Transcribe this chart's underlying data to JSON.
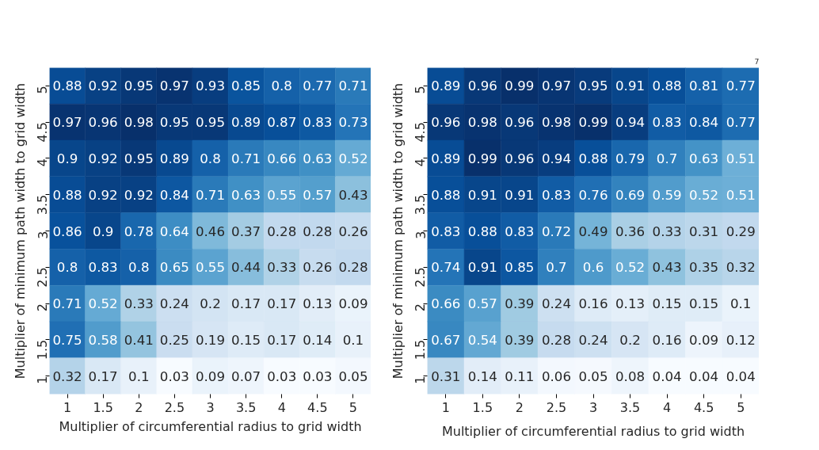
{
  "chart_data": [
    {
      "type": "heatmap",
      "xlabel": "Multiplier of circumferential radius to grid width",
      "ylabel": "Multiplier of minimum path width to grid width",
      "categories": [
        "1",
        "1.5",
        "2",
        "2.5",
        "3",
        "3.5",
        "4",
        "4.5",
        "5"
      ],
      "y_categories": [
        "5",
        "4.5",
        "4",
        "3.5",
        "3",
        "2.5",
        "2",
        "1.5",
        "1"
      ],
      "cells": [
        [
          0.88,
          0.92,
          0.95,
          0.97,
          0.93,
          0.85,
          0.8,
          0.77,
          0.71
        ],
        [
          0.97,
          0.96,
          0.98,
          0.95,
          0.95,
          0.89,
          0.87,
          0.83,
          0.73
        ],
        [
          0.9,
          0.92,
          0.95,
          0.89,
          0.8,
          0.71,
          0.66,
          0.63,
          0.52
        ],
        [
          0.88,
          0.92,
          0.92,
          0.84,
          0.71,
          0.63,
          0.55,
          0.57,
          0.43
        ],
        [
          0.86,
          0.9,
          0.78,
          0.64,
          0.46,
          0.37,
          0.28,
          0.28,
          0.26
        ],
        [
          0.8,
          0.83,
          0.8,
          0.65,
          0.55,
          0.44,
          0.33,
          0.26,
          0.28
        ],
        [
          0.71,
          0.52,
          0.33,
          0.24,
          0.2,
          0.17,
          0.17,
          0.13,
          0.09
        ],
        [
          0.75,
          0.58,
          0.41,
          0.25,
          0.19,
          0.15,
          0.17,
          0.14,
          0.1
        ],
        [
          0.32,
          0.17,
          0.1,
          0.03,
          0.09,
          0.07,
          0.03,
          0.03,
          0.05
        ]
      ],
      "data_labels": true
    },
    {
      "type": "heatmap",
      "xlabel": "Multiplier of circumferential radius to grid width",
      "ylabel": "Multiplier of minimum path width to grid width",
      "categories": [
        "1",
        "1.5",
        "2",
        "2.5",
        "3",
        "3.5",
        "4",
        "4.5",
        "5"
      ],
      "y_categories": [
        "5",
        "4.5",
        "4",
        "3.5",
        "3",
        "2.5",
        "2",
        "1.5",
        "1"
      ],
      "cells": [
        [
          0.89,
          0.96,
          0.99,
          0.97,
          0.95,
          0.91,
          0.88,
          0.81,
          0.77
        ],
        [
          0.96,
          0.98,
          0.96,
          0.98,
          0.99,
          0.94,
          0.83,
          0.84,
          0.77
        ],
        [
          0.89,
          0.99,
          0.96,
          0.94,
          0.88,
          0.79,
          0.7,
          0.63,
          0.51
        ],
        [
          0.88,
          0.91,
          0.91,
          0.83,
          0.76,
          0.69,
          0.59,
          0.52,
          0.51
        ],
        [
          0.83,
          0.88,
          0.83,
          0.72,
          0.49,
          0.36,
          0.33,
          0.31,
          0.29
        ],
        [
          0.74,
          0.91,
          0.85,
          0.7,
          0.6,
          0.52,
          0.43,
          0.35,
          0.32
        ],
        [
          0.66,
          0.57,
          0.39,
          0.24,
          0.16,
          0.13,
          0.15,
          0.15,
          0.1
        ],
        [
          0.67,
          0.54,
          0.39,
          0.28,
          0.24,
          0.2,
          0.16,
          0.09,
          0.12
        ],
        [
          0.31,
          0.14,
          0.11,
          0.06,
          0.05,
          0.08,
          0.04,
          0.04,
          0.04
        ]
      ],
      "data_labels": true,
      "annotations": [
        "7"
      ]
    }
  ]
}
